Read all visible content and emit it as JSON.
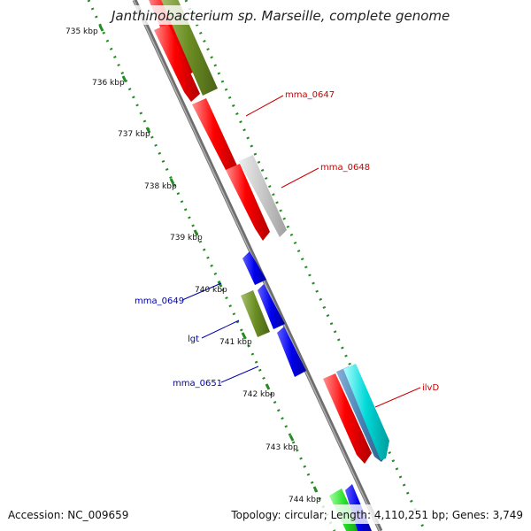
{
  "title": "Janthinobacterium sp. Marseille, complete genome",
  "footer": {
    "accession": "Accession: NC_009659",
    "topology": "Topology: circular; Length: 4,110,251 bp; Genes: 3,749"
  },
  "ticks": [
    "735 kbp",
    "736 kbp",
    "737 kbp",
    "738 kbp",
    "739 kbp",
    "740 kbp",
    "741 kbp",
    "742 kbp",
    "743 kbp",
    "744 kbp"
  ],
  "labels": {
    "mma_0647": "mma_0647",
    "mma_0648": "mma_0648",
    "ilvD": "ilvD",
    "mma_0649": "mma_0649",
    "lgt": "lgt",
    "mma_0651": "mma_0651"
  },
  "colors": {
    "red": "#ff0000",
    "olive": "#6b8e23",
    "gray": "#c0c0c0",
    "blue": "#0000ee",
    "cyan": "#00d0d0",
    "steelblue": "#4682b4",
    "green": "#22cc22",
    "forward_label": "#cc0000",
    "reverse_label": "#0000aa",
    "backbone": "#808080",
    "dots": "#228b22"
  }
}
